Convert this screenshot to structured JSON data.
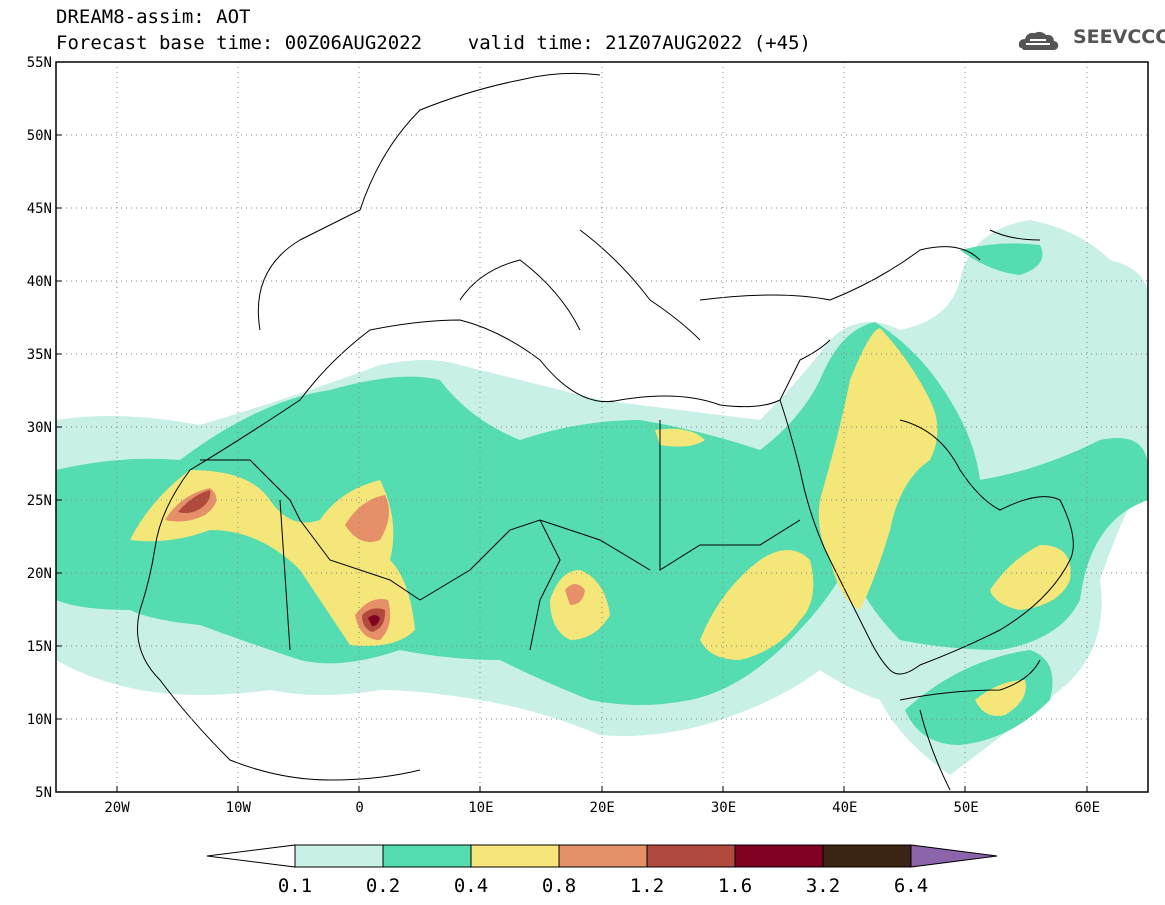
{
  "header": {
    "line1": "DREAM8-assim: AOT",
    "line2": "Forecast base time: 00Z06AUG2022    valid time: 21Z07AUG2022 (+45)"
  },
  "logo": {
    "text": "SEEVCCC",
    "icon": "cloud-icon"
  },
  "map": {
    "variable": "AOT",
    "lon_range": [
      -25,
      65
    ],
    "lat_range": [
      5,
      55
    ],
    "lat_ticks": [
      "55N",
      "50N",
      "45N",
      "40N",
      "35N",
      "30N",
      "25N",
      "20N",
      "15N",
      "10N",
      "5N"
    ],
    "lon_ticks": [
      "20W",
      "10W",
      "0",
      "10E",
      "20E",
      "30E",
      "40E",
      "50E",
      "60E"
    ],
    "grid": "dotted"
  },
  "colorbar": {
    "labels": [
      "0.1",
      "0.2",
      "0.4",
      "0.8",
      "1.2",
      "1.6",
      "3.2",
      "6.4"
    ],
    "colors": [
      "#ffffff",
      "#c8f0e6",
      "#55dcb0",
      "#f5e67a",
      "#e6906a",
      "#b04a3c",
      "#800020",
      "#3c2414",
      "#8c64aa"
    ]
  }
}
